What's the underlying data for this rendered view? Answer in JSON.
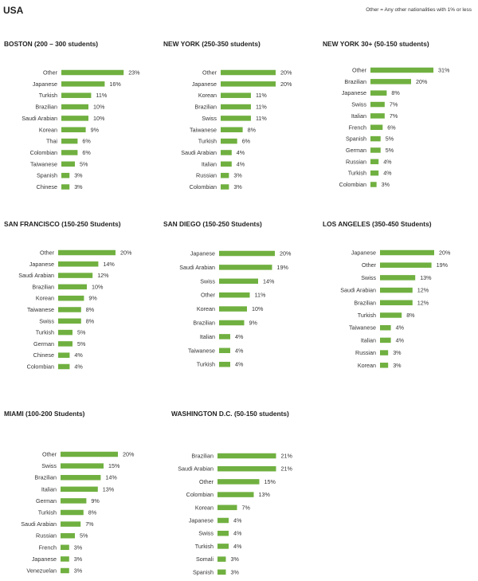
{
  "page": {
    "title": "USA",
    "note": "Other = Any other nationalities with 1% or less"
  },
  "colors": {
    "bar": "#70b040",
    "text": "#333333"
  },
  "chart_data": [
    {
      "type": "bar",
      "orientation": "horizontal",
      "title": "BOSTON (200 – 300 students)",
      "categories": [
        "Other",
        "Japanese",
        "Turkish",
        "Brazilian",
        "Saudi Arabian",
        "Korean",
        "Thai",
        "Colombian",
        "Taiwanese",
        "Spanish",
        "Chinese"
      ],
      "values": [
        23,
        16,
        11,
        10,
        10,
        9,
        6,
        6,
        5,
        3,
        3
      ],
      "unit": "%"
    },
    {
      "type": "bar",
      "orientation": "horizontal",
      "title": "NEW YORK (250-350 students)",
      "categories": [
        "Other",
        "Japanese",
        "Korean",
        "Brazilian",
        "Swiss",
        "Taiwanese",
        "Turkish",
        "Saudi Arabian",
        "Italian",
        "Russian",
        "Colombian"
      ],
      "values": [
        20,
        20,
        11,
        11,
        11,
        8,
        6,
        4,
        4,
        3,
        3
      ],
      "unit": "%"
    },
    {
      "type": "bar",
      "orientation": "horizontal",
      "title": "NEW YORK 30+ (50-150 students)",
      "categories": [
        "Other",
        "Brazilian",
        "Japanese",
        "Swiss",
        "Italian",
        "French",
        "Spanish",
        "German",
        "Russian",
        "Turkish",
        "Colombian"
      ],
      "values": [
        31,
        20,
        8,
        7,
        7,
        6,
        5,
        5,
        4,
        4,
        3
      ],
      "unit": "%"
    },
    {
      "type": "bar",
      "orientation": "horizontal",
      "title": "SAN FRANCISCO (150-250 Students)",
      "categories": [
        "Other",
        "Japanese",
        "Saudi Arabian",
        "Brazilian",
        "Korean",
        "Taiwanese",
        "Swiss",
        "Turkish",
        "German",
        "Chinese",
        "Colombian"
      ],
      "values": [
        20,
        14,
        12,
        10,
        9,
        8,
        8,
        5,
        5,
        4,
        4
      ],
      "unit": "%"
    },
    {
      "type": "bar",
      "orientation": "horizontal",
      "title": "SAN DIEGO (150-250 Students)",
      "categories": [
        "Japanese",
        "Saudi Arabian",
        "Swiss",
        "Other",
        "Korean",
        "Brazilian",
        "Italian",
        "Taiwanese",
        "Turkish"
      ],
      "values": [
        20,
        19,
        14,
        11,
        10,
        9,
        4,
        4,
        4
      ],
      "unit": "%"
    },
    {
      "type": "bar",
      "orientation": "horizontal",
      "title": "LOS ANGELES (350-450 Students)",
      "categories": [
        "Japanese",
        "Other",
        "Swiss",
        "Saudi Arabian",
        "Brazilian",
        "Turkish",
        "Taiwanese",
        "Italian",
        "Russian",
        "Korean"
      ],
      "values": [
        20,
        19,
        13,
        12,
        12,
        8,
        4,
        4,
        3,
        3
      ],
      "unit": "%"
    },
    {
      "type": "bar",
      "orientation": "horizontal",
      "title": "MIAMI (100-200 Students)",
      "categories": [
        "Other",
        "Swiss",
        "Brazilian",
        "Italian",
        "German",
        "Turkish",
        "Saudi Arabian",
        "Russian",
        "French",
        "Japanese",
        "Venezuelan"
      ],
      "values": [
        20,
        15,
        14,
        13,
        9,
        8,
        7,
        5,
        3,
        3,
        3
      ],
      "unit": "%"
    },
    {
      "type": "bar",
      "orientation": "horizontal",
      "title": "WASHINGTON D.C. (50-150 students)",
      "categories": [
        "Brazilian",
        "Saudi Arabian",
        "Other",
        "Colombian",
        "Korean",
        "Japanese",
        "Swiss",
        "Turkish",
        "Somali",
        "Spanish"
      ],
      "values": [
        21,
        21,
        15,
        13,
        7,
        4,
        4,
        4,
        3,
        3
      ],
      "unit": "%"
    }
  ]
}
